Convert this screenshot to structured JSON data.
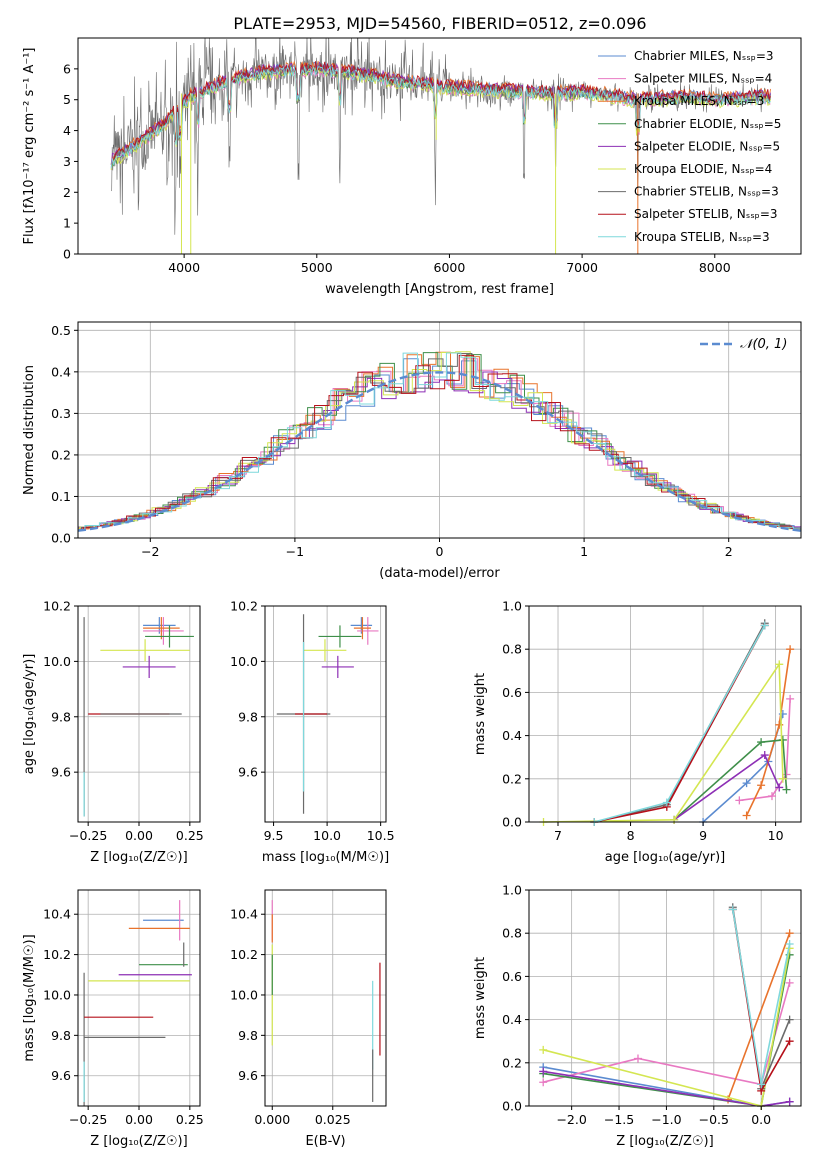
{
  "figure_title": "PLATE=2953, MJD=54560, FIBERID=0512, z=0.096",
  "colors": {
    "chabrier_miles": "#5b8bd0",
    "salpeter_miles": "#e879c2",
    "kroupa_miles": "#e8732c",
    "chabrier_elodie": "#3f8f4a",
    "salpeter_elodie": "#8d2fb5",
    "kroupa_elodie": "#d4e651",
    "chabrier_stelib": "#6b6b6b",
    "salpeter_stelib": "#b5101a",
    "kroupa_stelib": "#7fd8dc",
    "normal": "#5b8bd0"
  },
  "chart_data": [
    {
      "id": "spectrum",
      "type": "line",
      "title": "PLATE=2953, MJD=54560, FIBERID=0512, z=0.096",
      "xlabel": "wavelength [Angstrom, rest frame]",
      "ylabel": "Flux [fλ10⁻¹⁷ erg cm⁻² s⁻¹ A⁻¹]",
      "xlim": [
        3200,
        8650
      ],
      "ylim": [
        0,
        7
      ],
      "xticks": [
        "4000",
        "5000",
        "6000",
        "7000",
        "8000"
      ],
      "yticks": [
        "0",
        "1",
        "2",
        "3",
        "4",
        "5",
        "6"
      ],
      "legend_position": "right",
      "series": [
        {
          "name": "Chabrier MILES, Nₛₛₚ=3",
          "color_key": "chabrier_miles"
        },
        {
          "name": "Salpeter MILES, Nₛₛₚ=4",
          "color_key": "salpeter_miles"
        },
        {
          "name": "Kroupa MILES, Nₛₛₚ=3",
          "color_key": "kroupa_miles"
        },
        {
          "name": "Chabrier ELODIE, Nₛₛₚ=5",
          "color_key": "chabrier_elodie"
        },
        {
          "name": "Salpeter ELODIE, Nₛₛₚ=5",
          "color_key": "salpeter_elodie"
        },
        {
          "name": "Kroupa ELODIE, Nₛₛₚ=4",
          "color_key": "kroupa_elodie"
        },
        {
          "name": "Chabrier STELIB, Nₛₛₚ=3",
          "color_key": "chabrier_stelib"
        },
        {
          "name": "Salpeter STELIB, Nₛₛₚ=3",
          "color_key": "salpeter_stelib"
        },
        {
          "name": "Kroupa STELIB, Nₛₛₚ=3",
          "color_key": "kroupa_stelib"
        }
      ],
      "continuum": {
        "x": [
          3450,
          3550,
          3650,
          3750,
          3850,
          3950,
          4050,
          4200,
          4400,
          4600,
          4800,
          5000,
          5200,
          5400,
          5600,
          5800,
          6000,
          6200,
          6400,
          6600,
          6800,
          7000,
          7200,
          7400,
          7600,
          7800,
          8000,
          8200,
          8400
        ],
        "y": [
          3.0,
          3.3,
          3.6,
          3.9,
          4.2,
          4.7,
          5.1,
          5.4,
          5.7,
          5.9,
          5.95,
          6.0,
          5.9,
          5.8,
          5.6,
          5.5,
          5.4,
          5.35,
          5.3,
          5.25,
          5.2,
          5.25,
          5.15,
          5.0,
          5.05,
          5.1,
          5.0,
          5.05,
          5.1
        ]
      },
      "absorption_lines": [
        3934,
        3969,
        4102,
        4341,
        4861,
        5175,
        5893,
        6563,
        6800,
        7420
      ]
    },
    {
      "id": "residuals",
      "type": "histogram",
      "xlabel": "(data-model)/error",
      "ylabel": "Normed distribution",
      "xlim": [
        -2.5,
        2.5
      ],
      "ylim": [
        0,
        0.52
      ],
      "xticks": [
        "−2",
        "−1",
        "0",
        "1",
        "2"
      ],
      "yticks": [
        "0.0",
        "0.1",
        "0.2",
        "0.3",
        "0.4",
        "0.5"
      ],
      "legend": "𝒩(0, 1)",
      "legend_position": "top-right",
      "bin_width": 0.1,
      "normal_mean": 0,
      "normal_sigma": 1
    },
    {
      "id": "age-vs-z",
      "type": "errorbar",
      "xlabel": "Z [log₁₀(Z/Z☉)]",
      "ylabel": "age  [log₁₀(age/yr)]",
      "xlim": [
        -0.3,
        0.3
      ],
      "ylim": [
        9.42,
        10.2
      ],
      "xticks": [
        "−0.25",
        "0.00",
        "0.25"
      ],
      "xtick_values": [
        -0.25,
        0.0,
        0.25
      ],
      "yticks": [
        "9.6",
        "9.8",
        "10.0",
        "10.2"
      ],
      "ytick_values": [
        9.6,
        9.8,
        10.0,
        10.2
      ],
      "points": [
        {
          "c": "chabrier_miles",
          "x": 0.1,
          "xe": [
            0.08,
            0.08
          ],
          "y": 10.13,
          "ye": [
            0.03,
            0.03
          ]
        },
        {
          "c": "salpeter_miles",
          "x": 0.12,
          "xe": [
            0.1,
            0.1
          ],
          "y": 10.11,
          "ye": [
            0.05,
            0.05
          ]
        },
        {
          "c": "kroupa_miles",
          "x": 0.11,
          "xe": [
            0.09,
            0.09
          ],
          "y": 10.12,
          "ye": [
            0.04,
            0.04
          ]
        },
        {
          "c": "chabrier_elodie",
          "x": 0.15,
          "xe": [
            0.12,
            0.12
          ],
          "y": 10.09,
          "ye": [
            0.04,
            0.04
          ]
        },
        {
          "c": "salpeter_elodie",
          "x": 0.05,
          "xe": [
            0.13,
            0.13
          ],
          "y": 9.98,
          "ye": [
            0.04,
            0.04
          ]
        },
        {
          "c": "kroupa_elodie",
          "x": 0.03,
          "xe": [
            0.22,
            0.22
          ],
          "y": 10.04,
          "ye": [
            0.04,
            0.04
          ]
        },
        {
          "c": "chabrier_stelib",
          "x": -0.27,
          "xe": [
            0.0,
            0.0
          ],
          "y": 9.8,
          "ye": [
            0.36,
            0.36
          ]
        },
        {
          "c": "salpeter_stelib",
          "x": -0.05,
          "xe": [
            0.2,
            0.2
          ],
          "y": 9.81,
          "ye": [
            0.0,
            0.0
          ]
        },
        {
          "c": "kroupa_stelib",
          "x": -0.27,
          "xe": [
            0.0,
            0.0
          ],
          "y": 9.52,
          "ye": [
            0.08,
            0.08
          ]
        },
        {
          "c": "chabrier_stelib",
          "x": 0.01,
          "xe": [
            0.2,
            0.2
          ],
          "y": 9.81,
          "ye": [
            0.0,
            0.0
          ]
        }
      ]
    },
    {
      "id": "age-vs-mass",
      "type": "errorbar",
      "xlabel": "mass [log₁₀(M/M☉)]",
      "ylabel": "",
      "xlim": [
        9.42,
        10.55
      ],
      "ylim": [
        9.42,
        10.2
      ],
      "xticks": [
        "9.5",
        "10.0",
        "10.5"
      ],
      "xtick_values": [
        9.5,
        10.0,
        10.5
      ],
      "yticks": [
        "9.6",
        "9.8",
        "10.0",
        "10.2"
      ],
      "ytick_values": [
        9.6,
        9.8,
        10.0,
        10.2
      ],
      "points": [
        {
          "c": "chabrier_miles",
          "x": 10.32,
          "xe": [
            0.1,
            0.1
          ],
          "y": 10.13,
          "ye": [
            0.03,
            0.03
          ]
        },
        {
          "c": "salpeter_miles",
          "x": 10.38,
          "xe": [
            0.1,
            0.1
          ],
          "y": 10.11,
          "ye": [
            0.05,
            0.05
          ]
        },
        {
          "c": "kroupa_miles",
          "x": 10.33,
          "xe": [
            0.08,
            0.08
          ],
          "y": 10.12,
          "ye": [
            0.04,
            0.04
          ]
        },
        {
          "c": "chabrier_elodie",
          "x": 10.12,
          "xe": [
            0.2,
            0.2
          ],
          "y": 10.09,
          "ye": [
            0.04,
            0.04
          ]
        },
        {
          "c": "salpeter_elodie",
          "x": 10.1,
          "xe": [
            0.15,
            0.15
          ],
          "y": 9.98,
          "ye": [
            0.04,
            0.04
          ]
        },
        {
          "c": "kroupa_elodie",
          "x": 9.98,
          "xe": [
            0.2,
            0.2
          ],
          "y": 10.04,
          "ye": [
            0.04,
            0.04
          ]
        },
        {
          "c": "chabrier_stelib",
          "x": 9.78,
          "xe": [
            0.25,
            0.25
          ],
          "y": 9.81,
          "ye": [
            0.36,
            0.36
          ]
        },
        {
          "c": "salpeter_stelib",
          "x": 9.85,
          "xe": [
            0.15,
            0.15
          ],
          "y": 9.81,
          "ye": [
            0.0,
            0.0
          ]
        },
        {
          "c": "kroupa_stelib",
          "x": 9.78,
          "xe": [
            0.0,
            0.0
          ],
          "y": 9.8,
          "ye": [
            0.27,
            0.27
          ]
        }
      ]
    },
    {
      "id": "weight-vs-age",
      "type": "line",
      "xlabel": "age  [log₁₀(age/yr)]",
      "ylabel": "mass weight",
      "xlim": [
        6.6,
        10.35
      ],
      "ylim": [
        0,
        1.0
      ],
      "xticks": [
        "7",
        "8",
        "9",
        "10"
      ],
      "xtick_values": [
        7,
        8,
        9,
        10
      ],
      "yticks": [
        "0.0",
        "0.2",
        "0.4",
        "0.6",
        "0.8",
        "1.0"
      ],
      "ytick_values": [
        0,
        0.2,
        0.4,
        0.6,
        0.8,
        1.0
      ],
      "series": [
        {
          "c": "chabrier_miles",
          "x": [
            9.0,
            9.6,
            9.9,
            10.1
          ],
          "y": [
            0.0,
            0.18,
            0.28,
            0.5
          ]
        },
        {
          "c": "salpeter_miles",
          "x": [
            9.5,
            9.95,
            10.15,
            10.2
          ],
          "y": [
            0.1,
            0.12,
            0.22,
            0.57
          ]
        },
        {
          "c": "kroupa_miles",
          "x": [
            9.6,
            9.8,
            10.05,
            10.2
          ],
          "y": [
            0.03,
            0.17,
            0.45,
            0.8
          ]
        },
        {
          "c": "chabrier_elodie",
          "x": [
            8.6,
            9.8,
            10.1,
            10.15
          ],
          "y": [
            0.01,
            0.37,
            0.38,
            0.15
          ]
        },
        {
          "c": "salpeter_elodie",
          "x": [
            8.6,
            9.85,
            10.05
          ],
          "y": [
            0.01,
            0.31,
            0.16
          ]
        },
        {
          "c": "kroupa_elodie",
          "x": [
            6.8,
            8.6,
            10.05,
            10.1
          ],
          "y": [
            0.0,
            0.01,
            0.73,
            0.2
          ]
        },
        {
          "c": "chabrier_stelib",
          "x": [
            7.5,
            8.5,
            9.85
          ],
          "y": [
            0.0,
            0.08,
            0.92
          ]
        },
        {
          "c": "salpeter_stelib",
          "x": [
            7.5,
            8.5,
            9.85
          ],
          "y": [
            0.0,
            0.07,
            0.91
          ]
        },
        {
          "c": "kroupa_stelib",
          "x": [
            7.5,
            8.5,
            9.85
          ],
          "y": [
            0.0,
            0.09,
            0.91
          ]
        }
      ]
    },
    {
      "id": "mass-vs-z",
      "type": "errorbar",
      "xlabel": "Z [log₁₀(Z/Z☉)]",
      "ylabel": "mass [log₁₀(M/M☉)]",
      "xlim": [
        -0.3,
        0.3
      ],
      "ylim": [
        9.45,
        10.52
      ],
      "xticks": [
        "−0.25",
        "0.00",
        "0.25"
      ],
      "xtick_values": [
        -0.25,
        0.0,
        0.25
      ],
      "yticks": [
        "9.6",
        "9.8",
        "10.0",
        "10.2",
        "10.4"
      ],
      "ytick_values": [
        9.6,
        9.8,
        10.0,
        10.2,
        10.4
      ],
      "points": [
        {
          "c": "chabrier_miles",
          "x": 0.12,
          "xe": [
            0.1,
            0.1
          ],
          "y": 10.37,
          "ye": [
            0.0,
            0.0
          ]
        },
        {
          "c": "salpeter_miles",
          "x": 0.2,
          "xe": [
            0.0,
            0.0
          ],
          "y": 10.37,
          "ye": [
            0.1,
            0.1
          ]
        },
        {
          "c": "kroupa_miles",
          "x": 0.1,
          "xe": [
            0.15,
            0.15
          ],
          "y": 10.33,
          "ye": [
            0.0,
            0.0
          ]
        },
        {
          "c": "chabrier_elodie",
          "x": 0.12,
          "xe": [
            0.12,
            0.12
          ],
          "y": 10.15,
          "ye": [
            0.0,
            0.0
          ]
        },
        {
          "c": "salpeter_elodie",
          "x": 0.08,
          "xe": [
            0.18,
            0.18
          ],
          "y": 10.1,
          "ye": [
            0.0,
            0.0
          ]
        },
        {
          "c": "kroupa_elodie",
          "x": 0.0,
          "xe": [
            0.25,
            0.25
          ],
          "y": 10.07,
          "ye": [
            0.0,
            0.0
          ]
        },
        {
          "c": "chabrier_stelib",
          "x": -0.27,
          "xe": [
            0.0,
            0.0
          ],
          "y": 9.78,
          "ye": [
            0.33,
            0.33
          ]
        },
        {
          "c": "salpeter_stelib",
          "x": -0.1,
          "xe": [
            0.17,
            0.17
          ],
          "y": 9.89,
          "ye": [
            0.0,
            0.0
          ]
        },
        {
          "c": "kroupa_stelib",
          "x": -0.27,
          "xe": [
            0.0,
            0.0
          ],
          "y": 9.57,
          "ye": [
            0.1,
            0.1
          ]
        },
        {
          "c": "chabrier_stelib",
          "x": -0.07,
          "xe": [
            0.2,
            0.2
          ],
          "y": 9.79,
          "ye": [
            0.0,
            0.0
          ]
        },
        {
          "c": "chabrier_stelib",
          "x": 0.22,
          "xe": [
            0.0,
            0.0
          ],
          "y": 10.2,
          "ye": [
            0.06,
            0.06
          ]
        }
      ]
    },
    {
      "id": "mass-vs-ebv",
      "type": "errorbar",
      "xlabel": "E(B-V)",
      "ylabel": "",
      "xlim": [
        -0.003,
        0.047
      ],
      "ylim": [
        9.45,
        10.52
      ],
      "xticks": [
        "0.000",
        "0.025"
      ],
      "xtick_values": [
        0.0,
        0.025
      ],
      "yticks": [
        "9.6",
        "9.8",
        "10.0",
        "10.2",
        "10.4"
      ],
      "ytick_values": [
        9.6,
        9.8,
        10.0,
        10.2,
        10.4
      ],
      "points": [
        {
          "c": "salpeter_miles",
          "x": 0.0,
          "xe": [
            0,
            0
          ],
          "y": 10.37,
          "ye": [
            0.1,
            0.1
          ]
        },
        {
          "c": "kroupa_miles",
          "x": 0.0,
          "xe": [
            0,
            0
          ],
          "y": 10.33,
          "ye": [
            0.07,
            0.07
          ]
        },
        {
          "c": "kroupa_elodie",
          "x": 0.0,
          "xe": [
            0,
            0
          ],
          "y": 10.0,
          "ye": [
            0.25,
            0.25
          ]
        },
        {
          "c": "chabrier_elodie",
          "x": 0.0,
          "xe": [
            0,
            0
          ],
          "y": 10.1,
          "ye": [
            0.1,
            0.1
          ]
        },
        {
          "c": "salpeter_stelib",
          "x": 0.0445,
          "xe": [
            0,
            0
          ],
          "y": 9.93,
          "ye": [
            0.23,
            0.23
          ]
        },
        {
          "c": "kroupa_stelib",
          "x": 0.0415,
          "xe": [
            0,
            0
          ],
          "y": 9.85,
          "ye": [
            0.22,
            0.22
          ]
        },
        {
          "c": "chabrier_stelib",
          "x": 0.0415,
          "xe": [
            0,
            0
          ],
          "y": 9.6,
          "ye": [
            0.13,
            0.13
          ]
        }
      ]
    },
    {
      "id": "weight-vs-z",
      "type": "line",
      "xlabel": "Z [log₁₀(Z/Z☉)]",
      "ylabel": "mass weight",
      "xlim": [
        -2.45,
        0.42
      ],
      "ylim": [
        0,
        1.0
      ],
      "xticks": [
        "−2.0",
        "−1.5",
        "−1.0",
        "−0.5",
        "0.0"
      ],
      "xtick_values": [
        -2.0,
        -1.5,
        -1.0,
        -0.5,
        0.0
      ],
      "yticks": [
        "0.0",
        "0.2",
        "0.4",
        "0.6",
        "0.8",
        "1.0"
      ],
      "ytick_values": [
        0,
        0.2,
        0.4,
        0.6,
        0.8,
        1.0
      ],
      "series": [
        {
          "c": "chabrier_miles",
          "x": [
            -2.3,
            0.0,
            0.3
          ],
          "y": [
            0.18,
            0.0,
            0.02
          ]
        },
        {
          "c": "salpeter_miles",
          "x": [
            -2.3,
            -1.3,
            0.0,
            0.3
          ],
          "y": [
            0.11,
            0.22,
            0.1,
            0.57
          ]
        },
        {
          "c": "kroupa_miles",
          "x": [
            -0.35,
            0.3
          ],
          "y": [
            0.03,
            0.8
          ]
        },
        {
          "c": "chabrier_elodie",
          "x": [
            -2.3,
            0.0,
            0.3
          ],
          "y": [
            0.15,
            0.0,
            0.7
          ]
        },
        {
          "c": "salpeter_elodie",
          "x": [
            -2.3,
            0.0,
            0.3
          ],
          "y": [
            0.16,
            0.0,
            0.02
          ]
        },
        {
          "c": "kroupa_elodie",
          "x": [
            -2.3,
            0.0,
            0.3
          ],
          "y": [
            0.26,
            0.0,
            0.73
          ]
        },
        {
          "c": "chabrier_stelib",
          "x": [
            -0.3,
            0.0,
            0.3
          ],
          "y": [
            0.92,
            0.08,
            0.4
          ]
        },
        {
          "c": "salpeter_stelib",
          "x": [
            -0.3,
            0.0,
            0.3
          ],
          "y": [
            0.91,
            0.07,
            0.3
          ]
        },
        {
          "c": "kroupa_stelib",
          "x": [
            -0.3,
            0.0,
            0.3
          ],
          "y": [
            0.91,
            0.1,
            0.75
          ]
        }
      ]
    }
  ]
}
